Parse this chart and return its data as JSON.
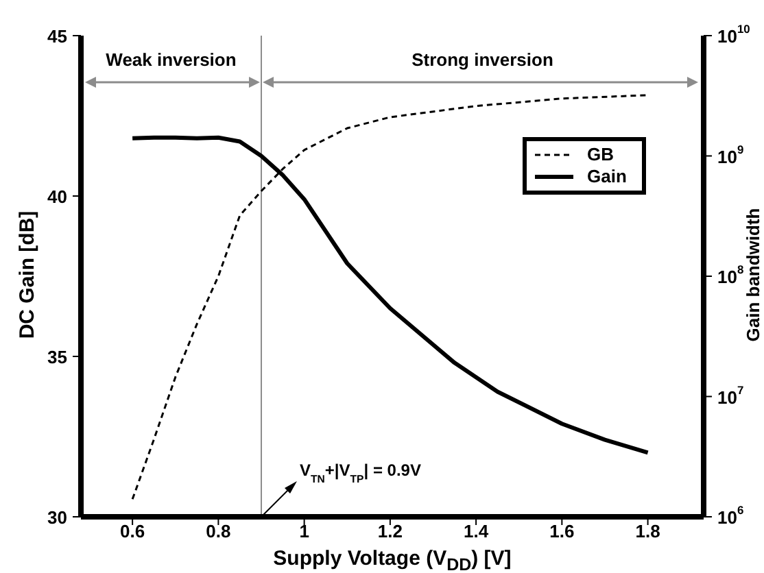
{
  "chart_data": {
    "type": "line",
    "xlabel": "Supply Voltage (V$_{DD}$) [V]",
    "ylabel": "DC Gain [dB]",
    "y2label": "Gain bandwidth",
    "xlim": [
      0.48,
      1.93
    ],
    "xticks": [
      0.6,
      0.8,
      1,
      1.2,
      1.4,
      1.6,
      1.8
    ],
    "ylim": [
      30,
      45
    ],
    "yticks": [
      30,
      35,
      40,
      45
    ],
    "y2lim": [
      1000000,
      10000000000
    ],
    "y2ticks": [
      {
        "value": 1000000,
        "label": "10$^{6}$"
      },
      {
        "value": 10000000,
        "label": "10$^{7}$"
      },
      {
        "value": 100000000,
        "label": "10$^{8}$"
      },
      {
        "value": 1000000000,
        "label": "10$^{9}$"
      },
      {
        "value": 10000000000,
        "label": "10$^{10}$"
      }
    ],
    "log": "y2",
    "legend": "top right",
    "grid": false,
    "marker": "none",
    "series": [
      {
        "name": "GB",
        "color": "#000000",
        "axis": "y2",
        "line_style": "dashed",
        "x": [
          0.6,
          0.65,
          0.7,
          0.75,
          0.8,
          0.85,
          0.9,
          0.95,
          1.0,
          1.1,
          1.2,
          1.4,
          1.6,
          1.8
        ],
        "values": [
          1400000,
          4400000,
          14500000,
          40000000,
          100000000,
          320000000,
          510000000,
          780000000,
          1120000000,
          1700000000,
          2100000000,
          2600000000,
          3000000000,
          3200000000
        ]
      },
      {
        "name": "Gain",
        "color": "#000000",
        "line_style": "solid",
        "x": [
          0.6,
          0.65,
          0.7,
          0.75,
          0.8,
          0.85,
          0.9,
          0.95,
          1.0,
          1.1,
          1.2,
          1.35,
          1.45,
          1.6,
          1.7,
          1.8
        ],
        "values": [
          41.8,
          41.82,
          41.82,
          41.8,
          41.82,
          41.7,
          41.25,
          40.65,
          39.9,
          37.9,
          36.5,
          34.8,
          33.9,
          32.9,
          32.4,
          32.0
        ]
      }
    ],
    "ref_lines": [
      {
        "axis": "x",
        "value": 0.9,
        "color": "#8c8c8c",
        "line_style": "solid"
      }
    ],
    "annotations": [
      "Weak inversion",
      "Strong inversion",
      {
        "text": "V$_{TN}$+|V$_{TP}$| = 0.9V",
        "x": 0.9,
        "y": 30
      }
    ]
  }
}
